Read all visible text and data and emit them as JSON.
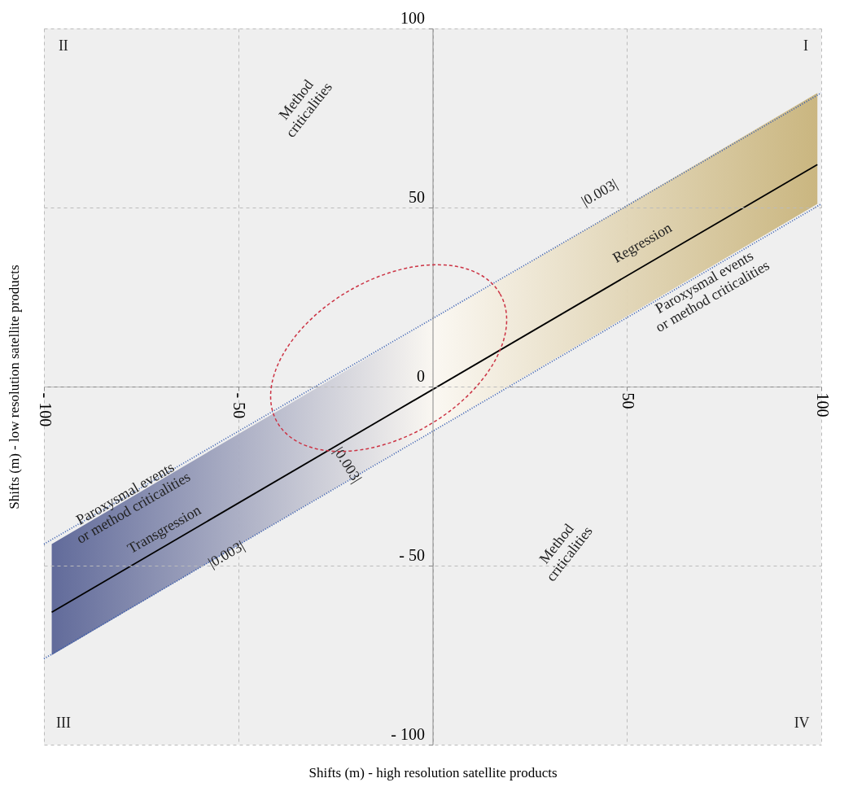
{
  "chart_data": {
    "type": "line",
    "xlabel": "Shifts (m)  -  high resolution satellite products",
    "ylabel": "Shifts (m)  -  low resolution satellite products",
    "xlim": [
      -100,
      100
    ],
    "ylim": [
      -100,
      100
    ],
    "xticks": [
      {
        "value": -100,
        "label": "- 100"
      },
      {
        "value": -50,
        "label": "- 50"
      },
      {
        "value": 0,
        "label": null
      },
      50,
      100
    ],
    "yticks": [
      {
        "value": -100,
        "label": "- 100"
      },
      {
        "value": -50,
        "label": "- 50"
      },
      0,
      50,
      100
    ],
    "grid": true,
    "series": [
      {
        "color": "#000000",
        "x": [
          -98,
          99
        ],
        "values": [
          -63,
          62
        ],
        "lower": [
          -75,
          51
        ],
        "upper": [
          -44,
          82
        ],
        "line_style": "solid"
      },
      {
        "color": "#3a5fb0",
        "line_style": "dotted",
        "x": [
          -100,
          100
        ],
        "values": [
          -44,
          82
        ]
      },
      {
        "color": "#3a5fb0",
        "line_style": "dotted",
        "x": [
          -100,
          100
        ],
        "values": [
          -76,
          51
        ]
      }
    ],
    "annotations": [
      "I",
      "II",
      "III",
      "IV",
      "Method\ncriticalities",
      "Method\ncriticalities",
      "Regression",
      "Paroxysmal events\nor method criticalities",
      "Transgression",
      "Paroxysmal events\nor method criticalities",
      "|0.003|",
      "|0.003|",
      "|0.003|"
    ]
  }
}
